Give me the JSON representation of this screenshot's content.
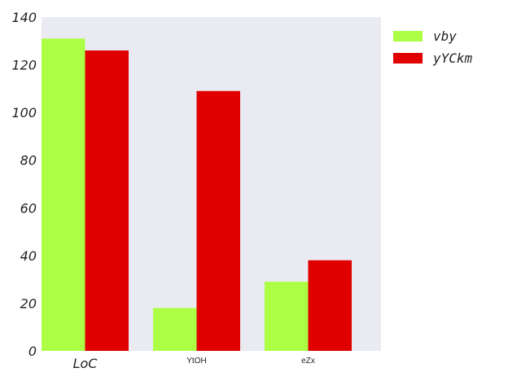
{
  "chart_data": {
    "type": "bar",
    "title": "",
    "xlabel": "",
    "ylabel": "",
    "categories": [
      "LoC",
      "YtOH",
      "eZx"
    ],
    "series": [
      {
        "name": "vby",
        "values": [
          131,
          18,
          29
        ],
        "color": "#adff45"
      },
      {
        "name": "yYCkm",
        "values": [
          126,
          109,
          38
        ],
        "color": "#e00000"
      }
    ],
    "ylim": [
      0,
      140
    ],
    "yticks": [
      0,
      20,
      40,
      60,
      80,
      100,
      120,
      140
    ],
    "grid": false,
    "legend_position": "outside-top-right",
    "plot_background": "#eaeaf2"
  }
}
